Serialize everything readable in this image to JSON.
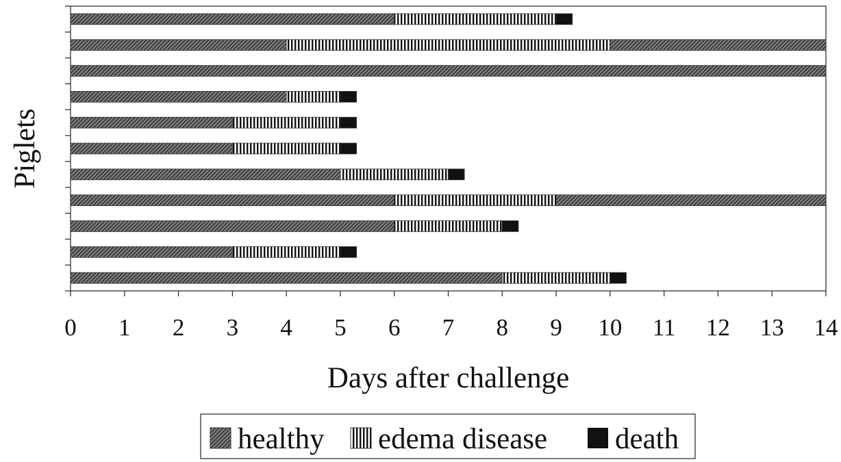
{
  "chart_data": {
    "type": "bar",
    "orientation": "horizontal",
    "stacked": true,
    "ylabel": "Piglets",
    "xlabel": "Days after challenge",
    "xlim": [
      0,
      14
    ],
    "x_ticks": [
      0,
      1,
      2,
      3,
      4,
      5,
      6,
      7,
      8,
      9,
      10,
      11,
      12,
      13,
      14
    ],
    "grid": false,
    "legend_position": "bottom",
    "series": [
      {
        "name": "healthy",
        "pattern": "diagonal-hatch"
      },
      {
        "name": "edema disease",
        "pattern": "vertical-stripes"
      },
      {
        "name": "death",
        "pattern": "solid-black"
      }
    ],
    "piglets_top_to_bottom": [
      {
        "healthy": 6,
        "edema disease": 3,
        "death": 0.3
      },
      {
        "healthy": 4,
        "edema disease": 6,
        "healthy_after_recovery": 4
      },
      {
        "healthy": 14
      },
      {
        "healthy": 4,
        "edema disease": 1,
        "death": 0.3
      },
      {
        "healthy": 3,
        "edema disease": 2,
        "death": 0.3
      },
      {
        "healthy": 3,
        "edema disease": 2,
        "death": 0.3
      },
      {
        "healthy": 5,
        "edema disease": 2,
        "death": 0.3
      },
      {
        "healthy": 6,
        "edema disease": 3,
        "healthy_after_recovery": 5
      },
      {
        "healthy": 6,
        "edema disease": 2,
        "death": 0.3
      },
      {
        "healthy": 3,
        "edema disease": 2,
        "death": 0.3
      },
      {
        "healthy": 8,
        "edema disease": 2,
        "death": 0.3
      }
    ],
    "colors": {
      "hatch": "#333333",
      "death": "#111111",
      "axis": "#222222"
    }
  }
}
